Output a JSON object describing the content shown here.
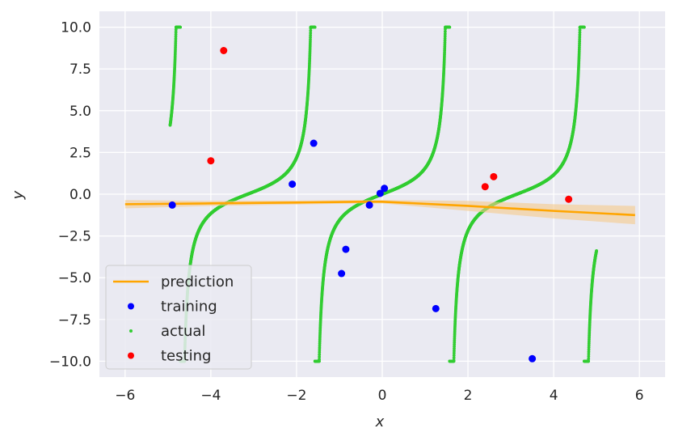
{
  "chart_data": {
    "type": "line",
    "xlabel": "x",
    "ylabel": "y",
    "xlim": [
      -6.6,
      6.6
    ],
    "ylim": [
      -10.95,
      10.95
    ],
    "xticks": [
      -6,
      -4,
      -2,
      0,
      2,
      4,
      6
    ],
    "xtick_labels": [
      "−6",
      "−4",
      "−2",
      "0",
      "2",
      "4",
      "6"
    ],
    "yticks": [
      10.0,
      7.5,
      5.0,
      2.5,
      0.0,
      -2.5,
      -5.0,
      -7.5,
      -10.0
    ],
    "ytick_labels": [
      "10.0",
      "7.5",
      "5.0",
      "2.5",
      "0.0",
      "−2.5",
      "−5.0",
      "−7.5",
      "−10.0"
    ],
    "grid": true,
    "legend_position": "lower-left",
    "colors": {
      "background": "#eaeaf2",
      "grid": "#ffffff",
      "prediction": "#ffa500",
      "band": "#f5c98a",
      "actual": "#32cd32",
      "training": "#0000ff",
      "testing": "#ff0000"
    },
    "series": [
      {
        "name": "prediction",
        "kind": "line",
        "x": [
          -6.0,
          -4.0,
          -2.0,
          -0.5,
          0.0,
          2.0,
          4.0,
          5.9
        ],
        "y": [
          -0.6,
          -0.55,
          -0.5,
          -0.45,
          -0.45,
          -0.7,
          -1.0,
          -1.25
        ],
        "band_lower": [
          -0.85,
          -0.7,
          -0.62,
          -0.55,
          -0.55,
          -1.0,
          -1.45,
          -1.8
        ],
        "band_upper": [
          -0.35,
          -0.4,
          -0.38,
          -0.35,
          -0.35,
          -0.4,
          -0.6,
          -0.7
        ]
      },
      {
        "name": "training",
        "kind": "scatter",
        "x": [
          -4.9,
          -2.1,
          -1.6,
          -0.95,
          -0.85,
          -0.3,
          -0.05,
          0.05,
          1.25,
          3.5
        ],
        "y": [
          -0.65,
          0.6,
          3.05,
          -4.75,
          -3.3,
          -0.65,
          0.05,
          0.35,
          -6.85,
          -9.85
        ]
      },
      {
        "name": "actual",
        "kind": "scatter-dense",
        "function": "tan(x) clipped to [-10, 10]",
        "x_range": [
          -4.95,
          5.0
        ],
        "clip": [
          -10,
          10
        ]
      },
      {
        "name": "testing",
        "kind": "scatter",
        "x": [
          -3.7,
          -4.0,
          2.4,
          2.6,
          4.35
        ],
        "y": [
          8.6,
          2.0,
          0.45,
          1.05,
          -0.3
        ]
      }
    ]
  }
}
